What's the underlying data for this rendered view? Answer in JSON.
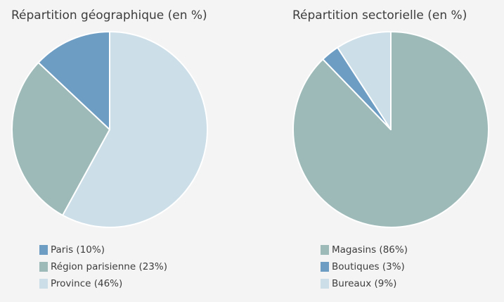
{
  "chart_data": [
    {
      "type": "pie",
      "title": "Répartition géographique (en %)",
      "start_angle_deg": 0,
      "direction": "clockwise",
      "slices": [
        {
          "label": "Province (46%)",
          "value": 58,
          "color": "#ccdee8"
        },
        {
          "label": "Région parisienne (23%)",
          "value": 29,
          "color": "#9dbab8"
        },
        {
          "label": "Paris (10%)",
          "value": 13,
          "color": "#6e9dc4"
        }
      ],
      "legend": [
        {
          "label": "Paris (10%)",
          "color": "#6e9dc4"
        },
        {
          "label": "Région parisienne (23%)",
          "color": "#9dbab8"
        },
        {
          "label": "Province (46%)",
          "color": "#ccdee8"
        }
      ],
      "legend_position": "bottom-left"
    },
    {
      "type": "pie",
      "title": "Répartition sectorielle (en %)",
      "start_angle_deg": 0,
      "direction": "clockwise",
      "slices": [
        {
          "label": "Magasins (86%)",
          "value": 86,
          "color": "#9dbab8"
        },
        {
          "label": "Boutiques (3%)",
          "value": 3,
          "color": "#6e9dc4"
        },
        {
          "label": "Bureaux (9%)",
          "value": 9,
          "color": "#ccdee8"
        }
      ],
      "legend": [
        {
          "label": "Magasins (86%)",
          "color": "#9dbab8"
        },
        {
          "label": "Boutiques (3%)",
          "color": "#6e9dc4"
        },
        {
          "label": "Bureaux (9%)",
          "color": "#ccdee8"
        }
      ],
      "legend_position": "bottom-left"
    }
  ]
}
